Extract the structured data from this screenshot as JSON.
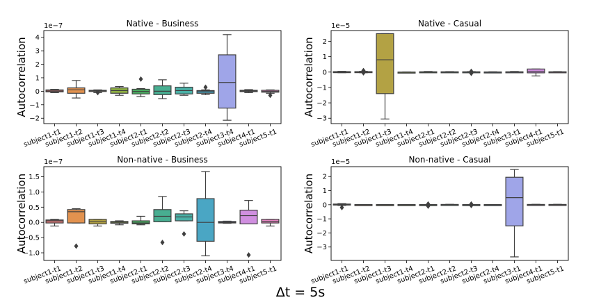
{
  "figure": {
    "xlabel": "Δt = 5s"
  },
  "chart_data": [
    {
      "type": "box",
      "title": "Native - Business",
      "ylabel": "Autocorrelation",
      "offset_text": "1e−7",
      "ylim": [
        -2.4,
        4.5
      ],
      "yticks": [
        -2,
        -1,
        0,
        1,
        2,
        3,
        4
      ],
      "categories": [
        "subject1-t1",
        "subject1-t2",
        "subject1-t3",
        "subject1-t4",
        "subject2-t1",
        "subject2-t2",
        "subject2-t3",
        "subject2-t4",
        "subject3-t4",
        "subject4-t1",
        "subject5-t1"
      ],
      "colors": [
        "#e07b7b",
        "#e2924f",
        "#b3a244",
        "#8eae43",
        "#4aae61",
        "#48ae91",
        "#4ab0a6",
        "#4aa6c4",
        "#9fa5e8",
        "#d08fe0",
        "#e585c2"
      ],
      "boxes": [
        {
          "wlo": -0.1,
          "q1": -0.05,
          "med": 0.02,
          "q3": 0.1,
          "whi": 0.14,
          "outliers": []
        },
        {
          "wlo": -0.5,
          "q1": -0.15,
          "med": 0.1,
          "q3": 0.25,
          "whi": 0.8,
          "outliers": []
        },
        {
          "wlo": -0.1,
          "q1": -0.02,
          "med": 0.03,
          "q3": 0.07,
          "whi": 0.1,
          "outliers": [
            -0.1
          ]
        },
        {
          "wlo": -0.3,
          "q1": -0.15,
          "med": 0.05,
          "q3": 0.25,
          "whi": 0.35,
          "outliers": []
        },
        {
          "wlo": -0.4,
          "q1": -0.2,
          "med": -0.02,
          "q3": 0.15,
          "whi": 0.2,
          "outliers": [
            0.9
          ]
        },
        {
          "wlo": -0.55,
          "q1": -0.25,
          "med": 0.0,
          "q3": 0.4,
          "whi": 0.85,
          "outliers": []
        },
        {
          "wlo": -0.3,
          "q1": -0.2,
          "med": 0.05,
          "q3": 0.3,
          "whi": 0.6,
          "outliers": []
        },
        {
          "wlo": -0.25,
          "q1": -0.15,
          "med": -0.03,
          "q3": 0.05,
          "whi": 0.1,
          "outliers": [
            0.3
          ]
        },
        {
          "wlo": -2.15,
          "q1": -1.25,
          "med": 0.65,
          "q3": 2.7,
          "whi": 4.2,
          "outliers": []
        },
        {
          "wlo": -0.1,
          "q1": -0.03,
          "med": 0.02,
          "q3": 0.07,
          "whi": 0.12,
          "outliers": []
        },
        {
          "wlo": -0.15,
          "q1": -0.07,
          "med": -0.02,
          "q3": 0.07,
          "whi": 0.1,
          "outliers": [
            -0.3
          ]
        }
      ]
    },
    {
      "type": "box",
      "title": "Native - Casual",
      "ylabel": "Autocorrelation",
      "offset_text": "1e−5",
      "ylim": [
        -3.35,
        2.7
      ],
      "yticks": [
        -3,
        -2,
        -1,
        0,
        1,
        2
      ],
      "categories": [
        "subject1-t1",
        "subject1-t2",
        "subject1-t3",
        "subject1-t4",
        "subject2-t1",
        "subject2-t2",
        "subject2-t3",
        "subject2-t4",
        "subject3-t1",
        "subject4-t1",
        "subject5-t1"
      ],
      "colors": [
        "#e07b7b",
        "#e2924f",
        "#b3a244",
        "#8eae43",
        "#4aae61",
        "#48ae91",
        "#4ab0a6",
        "#4aa6c4",
        "#9fa5e8",
        "#d08fe0",
        "#e585c2"
      ],
      "boxes": [
        {
          "wlo": -0.04,
          "q1": -0.02,
          "med": 0.0,
          "q3": 0.03,
          "whi": 0.05,
          "outliers": []
        },
        {
          "wlo": -0.04,
          "q1": -0.01,
          "med": 0.01,
          "q3": 0.03,
          "whi": 0.05,
          "outliers": [
            -0.05,
            0.1
          ]
        },
        {
          "wlo": -3.05,
          "q1": -1.4,
          "med": 0.8,
          "q3": 2.5,
          "whi": 2.5,
          "outliers": []
        },
        {
          "wlo": -0.03,
          "q1": -0.02,
          "med": -0.01,
          "q3": 0.0,
          "whi": 0.01,
          "outliers": []
        },
        {
          "wlo": -0.02,
          "q1": -0.01,
          "med": 0.0,
          "q3": 0.02,
          "whi": 0.04,
          "outliers": []
        },
        {
          "wlo": -0.02,
          "q1": -0.01,
          "med": 0.0,
          "q3": 0.02,
          "whi": 0.03,
          "outliers": []
        },
        {
          "wlo": -0.03,
          "q1": -0.01,
          "med": 0.0,
          "q3": 0.02,
          "whi": 0.03,
          "outliers": [
            -0.08,
            0.05
          ]
        },
        {
          "wlo": -0.02,
          "q1": -0.01,
          "med": 0.0,
          "q3": 0.01,
          "whi": 0.02,
          "outliers": []
        },
        {
          "wlo": -0.02,
          "q1": -0.01,
          "med": 0.0,
          "q3": 0.02,
          "whi": 0.04,
          "outliers": []
        },
        {
          "wlo": -0.25,
          "q1": -0.05,
          "med": 0.05,
          "q3": 0.2,
          "whi": 0.2,
          "outliers": []
        },
        {
          "wlo": -0.02,
          "q1": -0.01,
          "med": 0.0,
          "q3": 0.02,
          "whi": 0.03,
          "outliers": []
        }
      ]
    },
    {
      "type": "box",
      "title": "Non-native - Business",
      "ylabel": "Autocorrelation",
      "offset_text": "1e−7",
      "ylim": [
        -1.25,
        1.83
      ],
      "yticks": [
        -1.0,
        -0.5,
        0.0,
        0.5,
        1.0,
        1.5
      ],
      "categories": [
        "subject1-t1",
        "subject1-t2",
        "subject1-t3",
        "subject1-t4",
        "subject2-t1",
        "subject2-t2",
        "subject2-t3",
        "subject2-t4",
        "subject3-t4",
        "subject4-t1",
        "subject5-t1"
      ],
      "colors": [
        "#e07b7b",
        "#e2924f",
        "#b3a244",
        "#8eae43",
        "#4aae61",
        "#48ae91",
        "#4ab0a6",
        "#4aa6c4",
        "#9fa5e8",
        "#d08fe0",
        "#e585c2"
      ],
      "boxes": [
        {
          "wlo": -0.12,
          "q1": -0.02,
          "med": 0.05,
          "q3": 0.08,
          "whi": 0.1,
          "outliers": []
        },
        {
          "wlo": -0.02,
          "q1": -0.02,
          "med": 0.35,
          "q3": 0.42,
          "whi": 0.45,
          "outliers": [
            -0.78
          ]
        },
        {
          "wlo": -0.12,
          "q1": -0.05,
          "med": 0.02,
          "q3": 0.1,
          "whi": 0.1,
          "outliers": []
        },
        {
          "wlo": -0.08,
          "q1": -0.03,
          "med": 0.0,
          "q3": 0.03,
          "whi": 0.05,
          "outliers": []
        },
        {
          "wlo": -0.08,
          "q1": -0.05,
          "med": -0.02,
          "q3": 0.05,
          "whi": 0.2,
          "outliers": []
        },
        {
          "wlo": 0.02,
          "q1": 0.02,
          "med": 0.2,
          "q3": 0.42,
          "whi": 0.85,
          "outliers": [
            -0.66
          ]
        },
        {
          "wlo": 0.05,
          "q1": 0.05,
          "med": 0.18,
          "q3": 0.28,
          "whi": 0.38,
          "outliers": [
            -0.38
          ]
        },
        {
          "wlo": -1.1,
          "q1": -0.62,
          "med": 0.0,
          "q3": 0.78,
          "whi": 1.67,
          "outliers": []
        },
        {
          "wlo": -0.03,
          "q1": -0.02,
          "med": 0.0,
          "q3": 0.03,
          "whi": 0.04,
          "outliers": []
        },
        {
          "wlo": -0.05,
          "q1": -0.05,
          "med": 0.22,
          "q3": 0.4,
          "whi": 0.72,
          "outliers": [
            -1.07
          ]
        },
        {
          "wlo": -0.12,
          "q1": -0.02,
          "med": 0.03,
          "q3": 0.1,
          "whi": 0.1,
          "outliers": []
        }
      ]
    },
    {
      "type": "box",
      "title": "Non-native - Casual",
      "ylabel": "Autocorrelation",
      "offset_text": "1e−5",
      "ylim": [
        -3.95,
        2.7
      ],
      "yticks": [
        -3,
        -2,
        -1,
        0,
        1,
        2
      ],
      "categories": [
        "subject1-t1",
        "subject1-t2",
        "subject1-t3",
        "subject1-t4",
        "subject2-t1",
        "subject2-t2",
        "subject2-t3",
        "subject2-t4",
        "subject3-t1",
        "subject4-t1",
        "subject5-t1"
      ],
      "colors": [
        "#e07b7b",
        "#e2924f",
        "#b3a244",
        "#8eae43",
        "#4aae61",
        "#48ae91",
        "#4ab0a6",
        "#4aa6c4",
        "#9fa5e8",
        "#d08fe0",
        "#e585c2"
      ],
      "boxes": [
        {
          "wlo": -0.05,
          "q1": -0.02,
          "med": 0.02,
          "q3": 0.05,
          "whi": 0.08,
          "outliers": [
            -0.2
          ]
        },
        {
          "wlo": -0.01,
          "q1": 0.0,
          "med": 0.0,
          "q3": 0.01,
          "whi": 0.01,
          "outliers": []
        },
        {
          "wlo": -0.01,
          "q1": 0.0,
          "med": 0.0,
          "q3": 0.01,
          "whi": 0.01,
          "outliers": []
        },
        {
          "wlo": -0.01,
          "q1": 0.0,
          "med": 0.0,
          "q3": 0.01,
          "whi": 0.01,
          "outliers": []
        },
        {
          "wlo": -0.01,
          "q1": 0.0,
          "med": 0.0,
          "q3": 0.01,
          "whi": 0.01,
          "outliers": [
            -0.1,
            0.05
          ]
        },
        {
          "wlo": -0.02,
          "q1": -0.01,
          "med": 0.0,
          "q3": 0.02,
          "whi": 0.03,
          "outliers": []
        },
        {
          "wlo": -0.01,
          "q1": 0.0,
          "med": 0.0,
          "q3": 0.01,
          "whi": 0.01,
          "outliers": [
            -0.05,
            0.05
          ]
        },
        {
          "wlo": -0.01,
          "q1": 0.0,
          "med": 0.0,
          "q3": 0.01,
          "whi": 0.01,
          "outliers": []
        },
        {
          "wlo": -3.7,
          "q1": -1.5,
          "med": 0.5,
          "q3": 1.95,
          "whi": 2.5,
          "outliers": []
        },
        {
          "wlo": -0.02,
          "q1": -0.01,
          "med": 0.0,
          "q3": 0.02,
          "whi": 0.03,
          "outliers": []
        },
        {
          "wlo": -0.02,
          "q1": -0.01,
          "med": 0.0,
          "q3": 0.02,
          "whi": 0.03,
          "outliers": []
        }
      ]
    }
  ]
}
